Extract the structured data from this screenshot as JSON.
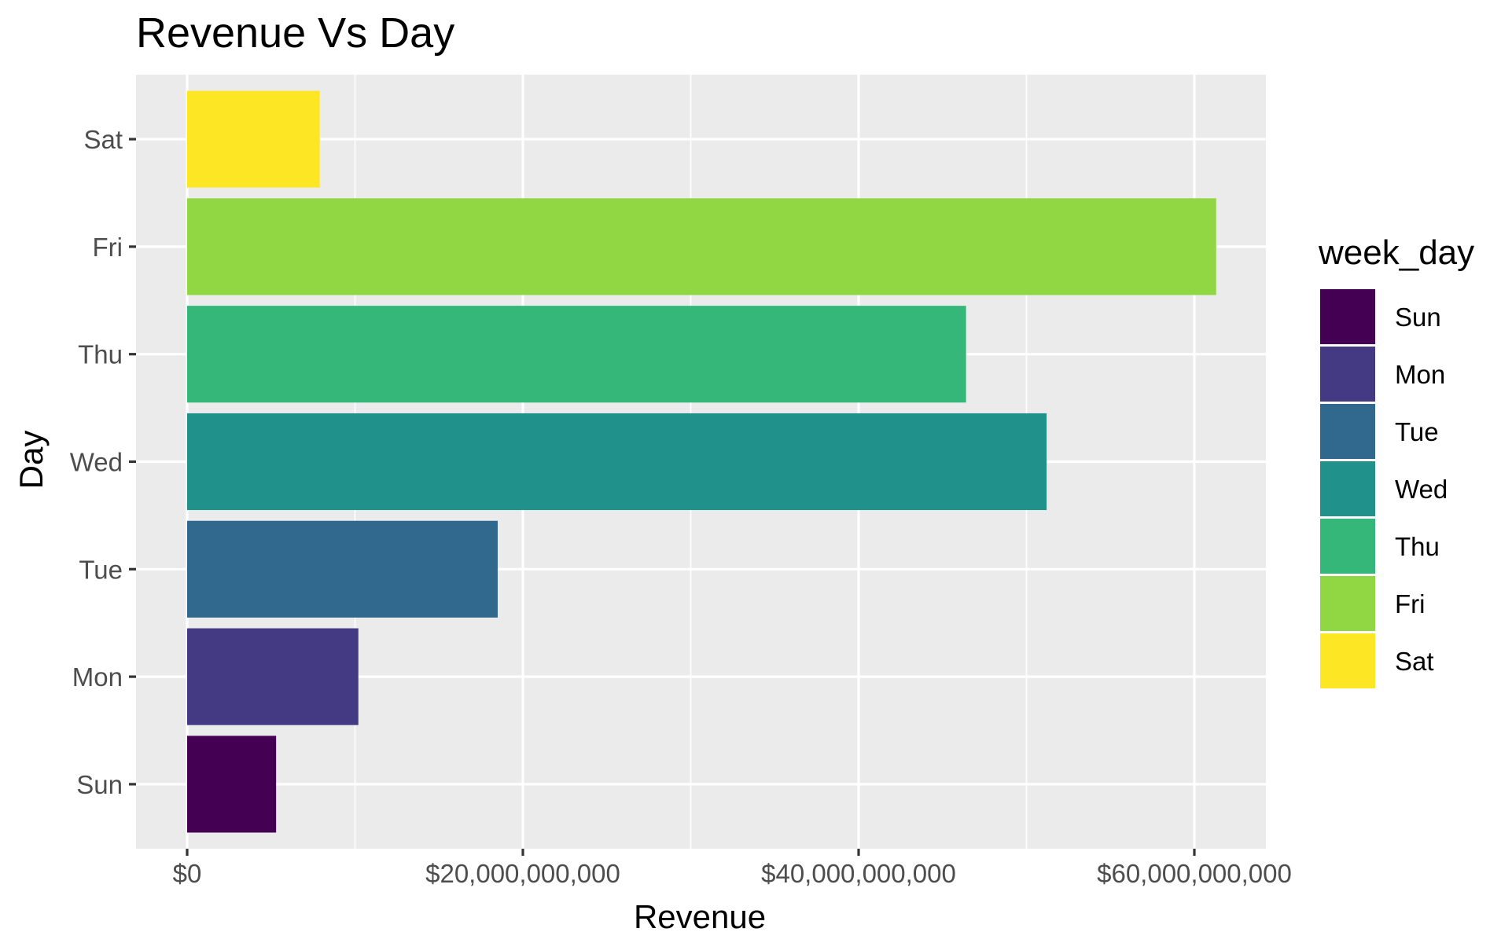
{
  "chart_data": {
    "type": "bar",
    "orientation": "horizontal",
    "title": "Revenue Vs Day",
    "xlabel": "Revenue",
    "ylabel": "Day",
    "categories": [
      "Sun",
      "Mon",
      "Tue",
      "Wed",
      "Thu",
      "Fri",
      "Sat"
    ],
    "values": [
      5300000000,
      10200000000,
      18500000000,
      51200000000,
      46400000000,
      61300000000,
      7900000000
    ],
    "colors": [
      "#440154",
      "#443983",
      "#31688e",
      "#21918c",
      "#35b779",
      "#90d743",
      "#fde725"
    ],
    "xlim": [
      -3000000000,
      64300000000
    ],
    "xticks": [
      0,
      20000000000,
      40000000000,
      60000000000
    ],
    "xtick_labels": [
      "$0",
      "$20,000,000,000",
      "$40,000,000,000",
      "$60,000,000,000"
    ],
    "panel_background": "#ebebeb",
    "grid_color": "#ffffff",
    "grid": true,
    "legend": {
      "title": "week_day",
      "position": "right",
      "entries": [
        "Sun",
        "Mon",
        "Tue",
        "Wed",
        "Thu",
        "Fri",
        "Sat"
      ]
    }
  }
}
